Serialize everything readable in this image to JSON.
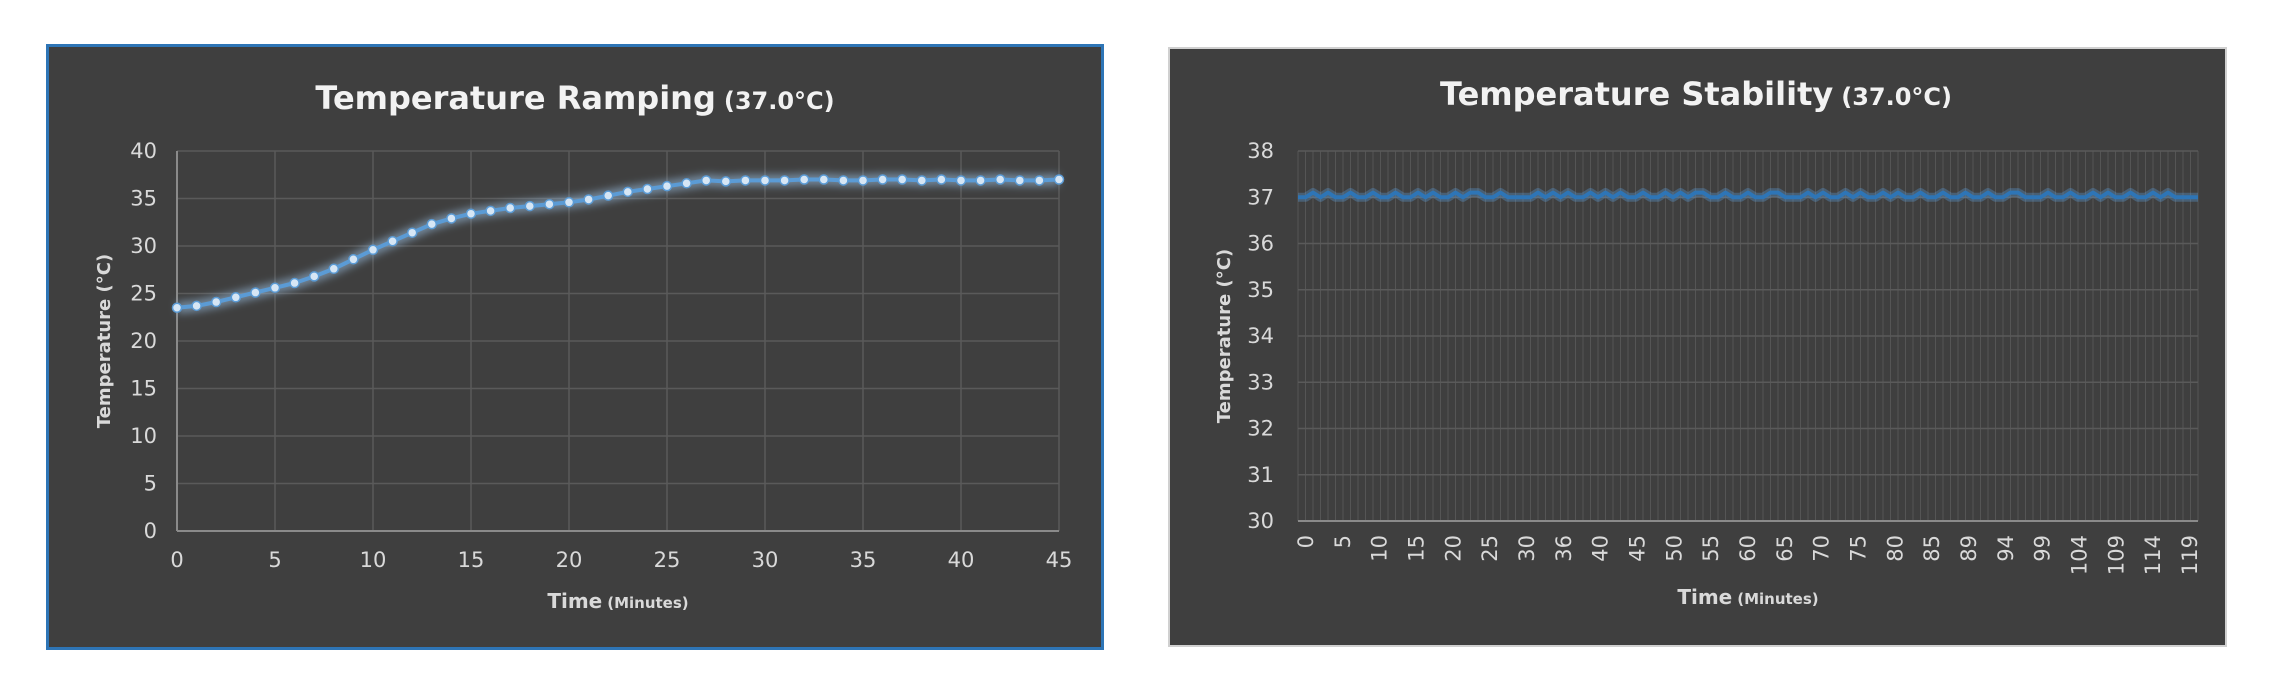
{
  "chart_data": [
    {
      "type": "line",
      "title": "Temperature Ramping",
      "subtitle": "(37.0°C)",
      "xlabel": "Time",
      "xlabel_unit": "(Minutes)",
      "ylabel": "Temperature (°C)",
      "xlim": [
        0,
        45
      ],
      "ylim": [
        0,
        40
      ],
      "xticks": [
        0,
        5,
        10,
        15,
        20,
        25,
        30,
        35,
        40,
        45
      ],
      "yticks": [
        0,
        5,
        10,
        15,
        20,
        25,
        30,
        35,
        40
      ],
      "grid": true,
      "legend": "none",
      "colors": {
        "line": "#5b9bd5",
        "glow": "#9dc3e6",
        "background": "#3f3f3f",
        "grid": "#5a5a5a"
      },
      "series": [
        {
          "x": [
            0,
            1,
            2,
            3,
            4,
            5,
            6,
            7,
            8,
            9,
            10,
            11,
            12,
            13,
            14,
            15,
            16,
            17,
            18,
            19,
            20,
            21,
            22,
            23,
            24,
            25,
            26,
            27,
            28,
            29,
            30,
            31,
            32,
            33,
            34,
            35,
            36,
            37,
            38,
            39,
            40,
            41,
            42,
            43,
            44,
            45
          ],
          "values": [
            23.5,
            23.7,
            24.1,
            24.6,
            25.1,
            25.6,
            26.1,
            26.8,
            27.6,
            28.6,
            29.6,
            30.5,
            31.4,
            32.3,
            32.9,
            33.4,
            33.7,
            34.0,
            34.2,
            34.4,
            34.6,
            34.9,
            35.3,
            35.7,
            36.0,
            36.3,
            36.6,
            36.9,
            36.8,
            36.9,
            36.9,
            36.9,
            37.0,
            37.0,
            36.9,
            36.9,
            37.0,
            37.0,
            36.9,
            37.0,
            36.9,
            36.9,
            37.0,
            36.9,
            36.9,
            37.0
          ]
        }
      ]
    },
    {
      "type": "line",
      "title": "Temperature Stability",
      "subtitle": "(37.0°C)",
      "xlabel": "Time",
      "xlabel_unit": "(Minutes)",
      "ylabel": "Temperature (°C)",
      "xlim": [
        0,
        120
      ],
      "ylim": [
        30,
        38
      ],
      "xtick_labels": [
        "0",
        "5",
        "10",
        "15",
        "20",
        "25",
        "30",
        "36",
        "40",
        "45",
        "50",
        "55",
        "60",
        "65",
        "70",
        "75",
        "80",
        "85",
        "89",
        "94",
        "99",
        "104",
        "109",
        "114",
        "119"
      ],
      "yticks": [
        30,
        31,
        32,
        33,
        34,
        35,
        36,
        37,
        38
      ],
      "grid": true,
      "legend": "none",
      "colors": {
        "line": "#2e75b6",
        "background": "#3f3f3f",
        "grid": "#5a5a5a"
      },
      "series": [
        {
          "x": [
            0,
            1,
            2,
            3,
            4,
            5,
            6,
            7,
            8,
            9,
            10,
            11,
            12,
            13,
            14,
            15,
            16,
            17,
            18,
            19,
            20,
            21,
            22,
            23,
            24,
            25,
            26,
            27,
            28,
            29,
            30,
            31,
            32,
            33,
            34,
            35,
            36,
            37,
            38,
            39,
            40,
            41,
            42,
            43,
            44,
            45,
            46,
            47,
            48,
            49,
            50,
            51,
            52,
            53,
            54,
            55,
            56,
            57,
            58,
            59,
            60,
            61,
            62,
            63,
            64,
            65,
            66,
            67,
            68,
            69,
            70,
            71,
            72,
            73,
            74,
            75,
            76,
            77,
            78,
            79,
            80,
            81,
            82,
            83,
            84,
            85,
            86,
            87,
            88,
            89,
            90,
            91,
            92,
            93,
            94,
            95,
            96,
            97,
            98,
            99,
            100,
            101,
            102,
            103,
            104,
            105,
            106,
            107,
            108,
            109,
            110,
            111,
            112,
            113,
            114,
            115,
            116,
            117,
            118,
            119,
            120
          ],
          "values": [
            37.0,
            37.0,
            37.1,
            37.0,
            37.1,
            37.0,
            37.0,
            37.1,
            37.0,
            37.0,
            37.1,
            37.0,
            37.0,
            37.1,
            37.0,
            37.0,
            37.1,
            37.0,
            37.1,
            37.0,
            37.0,
            37.1,
            37.0,
            37.1,
            37.1,
            37.0,
            37.0,
            37.1,
            37.0,
            37.0,
            37.0,
            37.0,
            37.1,
            37.0,
            37.1,
            37.0,
            37.1,
            37.0,
            37.0,
            37.1,
            37.0,
            37.1,
            37.0,
            37.1,
            37.0,
            37.0,
            37.1,
            37.0,
            37.0,
            37.1,
            37.0,
            37.1,
            37.0,
            37.1,
            37.1,
            37.0,
            37.0,
            37.1,
            37.0,
            37.0,
            37.1,
            37.0,
            37.0,
            37.1,
            37.1,
            37.0,
            37.0,
            37.0,
            37.1,
            37.0,
            37.1,
            37.0,
            37.0,
            37.1,
            37.0,
            37.1,
            37.0,
            37.0,
            37.1,
            37.0,
            37.1,
            37.0,
            37.0,
            37.1,
            37.0,
            37.0,
            37.1,
            37.0,
            37.0,
            37.1,
            37.0,
            37.0,
            37.1,
            37.0,
            37.0,
            37.1,
            37.1,
            37.0,
            37.0,
            37.0,
            37.1,
            37.0,
            37.0,
            37.1,
            37.0,
            37.0,
            37.1,
            37.0,
            37.1,
            37.0,
            37.0,
            37.1,
            37.0,
            37.0,
            37.1,
            37.0,
            37.1,
            37.0,
            37.0,
            37.0,
            37.0
          ]
        }
      ]
    }
  ]
}
